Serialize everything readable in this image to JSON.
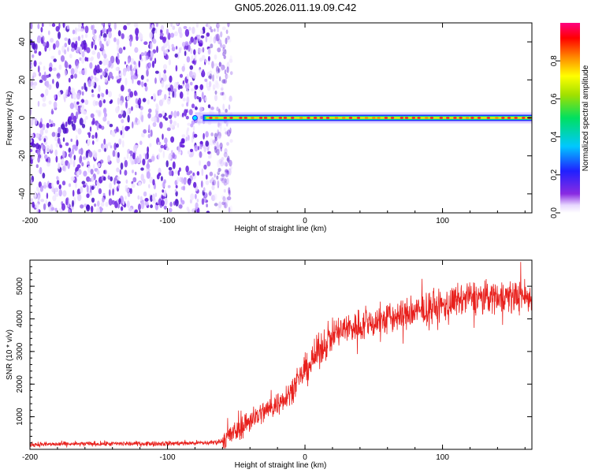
{
  "title": "GN05.2026.011.19.09.C42",
  "chart_data": [
    {
      "type": "heatmap",
      "xlabel": "Height of straight line (km)",
      "ylabel": "Frequency (Hz)",
      "xlim": [
        -200,
        165
      ],
      "ylim": [
        -50,
        50
      ],
      "xticks": [
        -200,
        -100,
        0,
        100
      ],
      "yticks": [
        40,
        20,
        0,
        -20,
        -40
      ],
      "noise_region_x": [
        -200,
        -58
      ],
      "signal_band_frequency": 0,
      "signal_band_start_x": -80,
      "colorbar": {
        "label": "Normalized spectral amplitude",
        "range": [
          0.0,
          1.0
        ],
        "ticks": [
          0.0,
          0.2,
          0.4,
          0.6,
          0.8
        ]
      }
    },
    {
      "type": "line",
      "xlabel": "Height of straight line (km)",
      "ylabel": "SNR (10 * v/v)",
      "xlim": [
        -200,
        165
      ],
      "ylim": [
        0,
        5800
      ],
      "xticks": [
        -200,
        -100,
        0,
        100
      ],
      "yticks": [
        1000,
        2000,
        3000,
        4000,
        5000
      ],
      "series": [
        {
          "name": "SNR",
          "color": "#e8201c",
          "x": [
            -200,
            -150,
            -100,
            -70,
            -60,
            -50,
            -40,
            -30,
            -20,
            -10,
            0,
            10,
            20,
            30,
            50,
            70,
            100,
            120,
            140,
            160,
            165
          ],
          "y": [
            150,
            170,
            180,
            200,
            250,
            550,
            900,
            1150,
            1400,
            1800,
            2400,
            3000,
            3500,
            3700,
            3900,
            4100,
            4400,
            4650,
            4700,
            4700,
            4600
          ]
        }
      ]
    }
  ]
}
